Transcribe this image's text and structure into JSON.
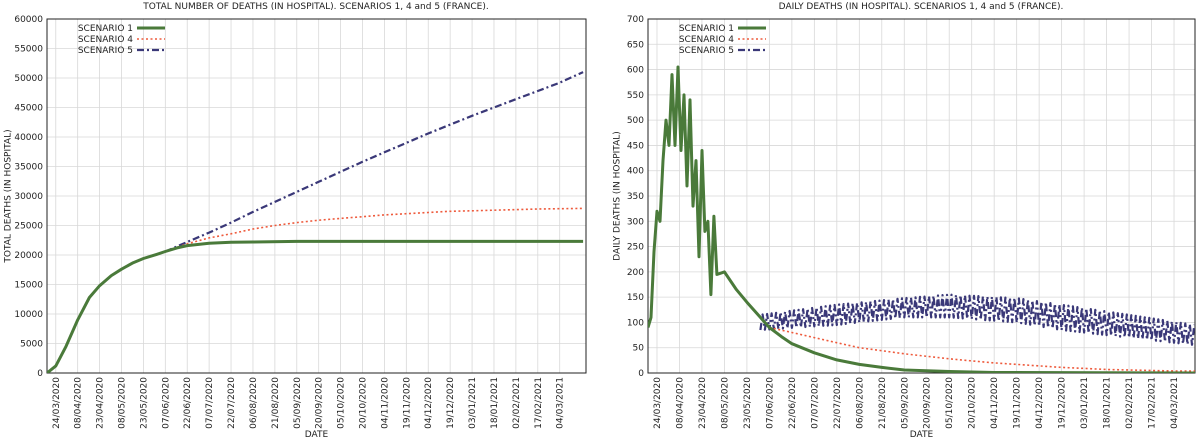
{
  "colors": {
    "scenario1": "#4a7a3a",
    "scenario4": "#ee5a3c",
    "scenario5": "#3a3878",
    "grid": "#d8d8d8",
    "axis": "#222222"
  },
  "chart_data": [
    {
      "type": "line",
      "title": "TOTAL NUMBER OF DEATHS (IN HOSPITAL). SCENARIOS 1, 4 and 5 (FRANCE).",
      "xlabel": "DATE",
      "ylabel": "TOTAL DEATHS (IN HOSPITAL)",
      "ylim": [
        0,
        60000
      ],
      "yticks": [
        0,
        5000,
        10000,
        15000,
        20000,
        25000,
        30000,
        35000,
        40000,
        45000,
        50000,
        55000,
        60000
      ],
      "xlim": [
        "2020-03-18",
        "2021-03-22"
      ],
      "xticks": [
        "24/03/2020",
        "08/04/2020",
        "23/04/2020",
        "08/05/2020",
        "23/05/2020",
        "07/06/2020",
        "22/06/2020",
        "07/07/2020",
        "22/07/2020",
        "06/08/2020",
        "21/08/2020",
        "05/09/2020",
        "20/09/2020",
        "05/10/2020",
        "20/10/2020",
        "04/11/2020",
        "19/11/2020",
        "04/12/2020",
        "19/12/2020",
        "03/01/2021",
        "18/01/2021",
        "02/02/2021",
        "17/02/2021",
        "04/03/2021"
      ],
      "grid": true,
      "legend": "top-left",
      "series": [
        {
          "name": "SCENARIO 1",
          "style": "solid",
          "points": [
            [
              "2020-03-18",
              0
            ],
            [
              "2020-03-24",
              1200
            ],
            [
              "2020-03-31",
              4500
            ],
            [
              "2020-04-08",
              9000
            ],
            [
              "2020-04-16",
              12800
            ],
            [
              "2020-04-23",
              14800
            ],
            [
              "2020-05-01",
              16500
            ],
            [
              "2020-05-08",
              17600
            ],
            [
              "2020-05-16",
              18700
            ],
            [
              "2020-05-23",
              19400
            ],
            [
              "2020-06-01",
              20100
            ],
            [
              "2020-06-07",
              20600
            ],
            [
              "2020-06-15",
              21200
            ],
            [
              "2020-06-22",
              21600
            ],
            [
              "2020-07-07",
              22000
            ],
            [
              "2020-07-22",
              22150
            ],
            [
              "2020-08-06",
              22200
            ],
            [
              "2020-09-05",
              22300
            ],
            [
              "2020-10-20",
              22300
            ],
            [
              "2020-12-19",
              22300
            ],
            [
              "2021-03-20",
              22300
            ]
          ]
        },
        {
          "name": "SCENARIO 4",
          "style": "dotted",
          "points": [
            [
              "2020-06-07",
              20600
            ],
            [
              "2020-06-22",
              21900
            ],
            [
              "2020-07-07",
              22900
            ],
            [
              "2020-07-22",
              23600
            ],
            [
              "2020-08-06",
              24400
            ],
            [
              "2020-08-21",
              25000
            ],
            [
              "2020-09-05",
              25500
            ],
            [
              "2020-09-20",
              25900
            ],
            [
              "2020-10-05",
              26200
            ],
            [
              "2020-10-20",
              26500
            ],
            [
              "2020-11-04",
              26800
            ],
            [
              "2020-11-19",
              27000
            ],
            [
              "2020-12-04",
              27200
            ],
            [
              "2020-12-19",
              27400
            ],
            [
              "2021-01-03",
              27500
            ],
            [
              "2021-01-18",
              27600
            ],
            [
              "2021-02-02",
              27700
            ],
            [
              "2021-02-17",
              27800
            ],
            [
              "2021-03-04",
              27850
            ],
            [
              "2021-03-20",
              27900
            ]
          ]
        },
        {
          "name": "SCENARIO 5",
          "style": "dashdot",
          "points": [
            [
              "2020-06-07",
              20600
            ],
            [
              "2020-06-22",
              22200
            ],
            [
              "2020-07-07",
              23800
            ],
            [
              "2020-07-22",
              25500
            ],
            [
              "2020-08-06",
              27300
            ],
            [
              "2020-08-21",
              29000
            ],
            [
              "2020-09-05",
              30700
            ],
            [
              "2020-09-20",
              32400
            ],
            [
              "2020-10-05",
              34100
            ],
            [
              "2020-10-20",
              35800
            ],
            [
              "2020-11-04",
              37400
            ],
            [
              "2020-11-19",
              39000
            ],
            [
              "2020-12-04",
              40600
            ],
            [
              "2020-12-19",
              42100
            ],
            [
              "2021-01-03",
              43600
            ],
            [
              "2021-01-18",
              45000
            ],
            [
              "2021-02-02",
              46400
            ],
            [
              "2021-02-17",
              47800
            ],
            [
              "2021-03-04",
              49200
            ],
            [
              "2021-03-20",
              51000
            ]
          ]
        }
      ]
    },
    {
      "type": "line",
      "title": "DAILY DEATHS (IN HOSPITAL). SCENARIOS 1, 4 and 5 (FRANCE).",
      "xlabel": "DATE",
      "ylabel": "DAILY DEATHS (IN HOSPITAL)",
      "ylim": [
        0,
        700
      ],
      "yticks": [
        0,
        50,
        100,
        150,
        200,
        250,
        300,
        350,
        400,
        450,
        500,
        550,
        600,
        650,
        700
      ],
      "xlim": [
        "2020-03-18",
        "2021-03-18"
      ],
      "xticks": [
        "24/03/2020",
        "08/04/2020",
        "23/04/2020",
        "08/05/2020",
        "23/05/2020",
        "07/06/2020",
        "22/06/2020",
        "07/07/2020",
        "22/07/2020",
        "06/08/2020",
        "21/08/2020",
        "05/09/2020",
        "20/09/2020",
        "05/10/2020",
        "20/10/2020",
        "04/11/2020",
        "19/11/2020",
        "04/12/2020",
        "19/12/2020",
        "03/01/2021",
        "18/01/2021",
        "02/02/2021",
        "17/02/2021",
        "04/03/2021"
      ],
      "grid": true,
      "legend": "top-left",
      "series": [
        {
          "name": "SCENARIO 1",
          "style": "solid",
          "points": [
            [
              "2020-03-18",
              90
            ],
            [
              "2020-03-20",
              110
            ],
            [
              "2020-03-22",
              240
            ],
            [
              "2020-03-24",
              320
            ],
            [
              "2020-03-26",
              300
            ],
            [
              "2020-03-28",
              420
            ],
            [
              "2020-03-30",
              500
            ],
            [
              "2020-04-01",
              450
            ],
            [
              "2020-04-03",
              590
            ],
            [
              "2020-04-05",
              450
            ],
            [
              "2020-04-07",
              605
            ],
            [
              "2020-04-09",
              440
            ],
            [
              "2020-04-11",
              550
            ],
            [
              "2020-04-13",
              370
            ],
            [
              "2020-04-15",
              540
            ],
            [
              "2020-04-17",
              330
            ],
            [
              "2020-04-19",
              420
            ],
            [
              "2020-04-21",
              230
            ],
            [
              "2020-04-23",
              440
            ],
            [
              "2020-04-25",
              280
            ],
            [
              "2020-04-27",
              300
            ],
            [
              "2020-04-29",
              155
            ],
            [
              "2020-05-01",
              310
            ],
            [
              "2020-05-03",
              195
            ],
            [
              "2020-05-08",
              200
            ],
            [
              "2020-05-16",
              165
            ],
            [
              "2020-05-23",
              140
            ],
            [
              "2020-06-01",
              110
            ],
            [
              "2020-06-07",
              90
            ],
            [
              "2020-06-15",
              72
            ],
            [
              "2020-06-22",
              58
            ],
            [
              "2020-07-07",
              40
            ],
            [
              "2020-07-22",
              26
            ],
            [
              "2020-08-06",
              17
            ],
            [
              "2020-08-21",
              11
            ],
            [
              "2020-09-05",
              6
            ],
            [
              "2020-10-05",
              3
            ],
            [
              "2020-11-04",
              1
            ],
            [
              "2021-03-18",
              0
            ]
          ]
        },
        {
          "name": "SCENARIO 4",
          "style": "dotted",
          "points": [
            [
              "2020-06-07",
              90
            ],
            [
              "2020-06-22",
              80
            ],
            [
              "2020-07-07",
              70
            ],
            [
              "2020-07-22",
              60
            ],
            [
              "2020-08-06",
              50
            ],
            [
              "2020-08-21",
              44
            ],
            [
              "2020-09-05",
              38
            ],
            [
              "2020-09-20",
              33
            ],
            [
              "2020-10-05",
              28
            ],
            [
              "2020-10-20",
              24
            ],
            [
              "2020-11-04",
              20
            ],
            [
              "2020-11-19",
              17
            ],
            [
              "2020-12-04",
              14
            ],
            [
              "2020-12-19",
              11
            ],
            [
              "2021-01-03",
              9
            ],
            [
              "2021-01-18",
              7
            ],
            [
              "2021-02-02",
              6
            ],
            [
              "2021-02-17",
              5
            ],
            [
              "2021-03-04",
              4
            ],
            [
              "2021-03-18",
              4
            ]
          ]
        },
        {
          "name": "SCENARIO 5",
          "style": "dashdot",
          "oscillation": {
            "low": [
              [
                "2020-06-01",
                85
              ],
              [
                "2020-07-22",
                95
              ],
              [
                "2020-09-05",
                110
              ],
              [
                "2020-10-05",
                110
              ],
              [
                "2020-11-19",
                100
              ],
              [
                "2020-12-19",
                85
              ],
              [
                "2021-02-02",
                70
              ],
              [
                "2021-03-18",
                55
              ]
            ],
            "high": [
              [
                "2020-06-01",
                115
              ],
              [
                "2020-07-22",
                135
              ],
              [
                "2020-09-05",
                148
              ],
              [
                "2020-10-05",
                155
              ],
              [
                "2020-11-19",
                148
              ],
              [
                "2020-12-19",
                135
              ],
              [
                "2021-02-02",
                115
              ],
              [
                "2021-03-18",
                95
              ]
            ]
          }
        }
      ]
    }
  ]
}
